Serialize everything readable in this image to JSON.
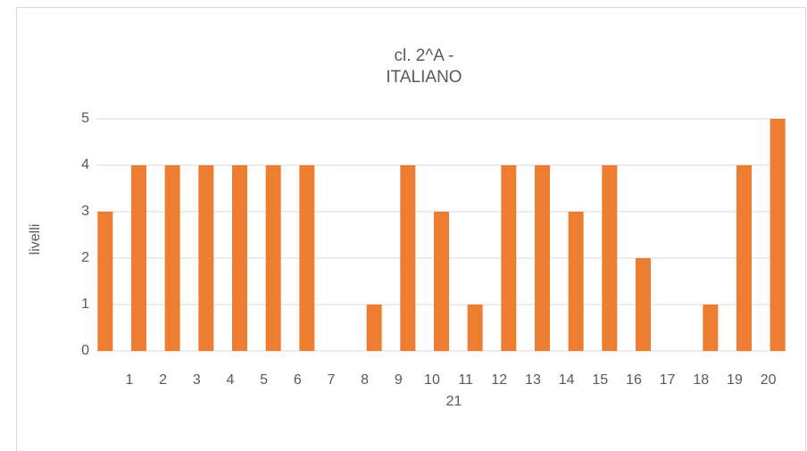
{
  "chart_data": {
    "type": "bar",
    "title": [
      "cl. 2^A -",
      "ITALIANO"
    ],
    "y_label": "livelli",
    "categories": [
      "1",
      "2",
      "3",
      "4",
      "5",
      "6",
      "7",
      "8",
      "9",
      "10",
      "11",
      "12",
      "13",
      "14",
      "15",
      "16",
      "17",
      "18",
      "19",
      "20",
      "21"
    ],
    "values": [
      3,
      4,
      4,
      4,
      4,
      4,
      4,
      0,
      1,
      4,
      3,
      1,
      4,
      4,
      3,
      4,
      2,
      0,
      1,
      4,
      5
    ],
    "color": "#ed7d31",
    "ylim": [
      0,
      5
    ],
    "yticks": [
      0,
      1,
      2,
      3,
      4,
      5
    ],
    "grid": true
  }
}
